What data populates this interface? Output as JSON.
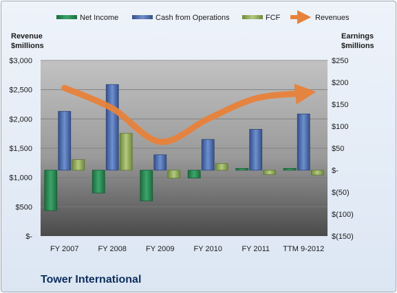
{
  "chart_data": {
    "type": "bar",
    "title": "Tower International",
    "categories": [
      "FY 2007",
      "FY 2008",
      "FY 2009",
      "FY 2010",
      "FY 2011",
      "TTM 9-2012"
    ],
    "left_axis": {
      "label_line1": "Revenue",
      "label_line2": "$millions",
      "ylim": [
        0,
        3000
      ],
      "ticks": [
        0,
        500,
        1000,
        1500,
        2000,
        2500,
        3000
      ],
      "tick_labels": [
        "$-",
        "$500",
        "$1,000",
        "$1,500",
        "$2,000",
        "$2,500",
        "$3,000"
      ]
    },
    "right_axis": {
      "label_line1": "Earnings",
      "label_line2": "$millions",
      "ylim": [
        -150,
        250
      ],
      "ticks": [
        -150,
        -100,
        -50,
        0,
        50,
        100,
        150,
        200,
        250
      ],
      "tick_labels": [
        "$(150)",
        "$(100)",
        "$(50)",
        "$-",
        "$50",
        "$100",
        "$150",
        "$200",
        "$250"
      ]
    },
    "series": [
      {
        "name": "Net Income",
        "axis": "right",
        "kind": "bar",
        "color": "#2e8b57",
        "values": [
          -92,
          -52,
          -70,
          -18,
          4,
          4
        ]
      },
      {
        "name": "Cash from Operations",
        "axis": "right",
        "kind": "bar",
        "color": "#4f6fae",
        "values": [
          134,
          195,
          35,
          70,
          93,
          128
        ]
      },
      {
        "name": "FCF",
        "axis": "right",
        "kind": "bar",
        "color": "#93ab5c",
        "values": [
          24,
          84,
          -18,
          15,
          -10,
          -11
        ]
      },
      {
        "name": "Revenues",
        "axis": "left",
        "kind": "line",
        "color": "#e8823a",
        "values": [
          2530,
          2180,
          1610,
          2000,
          2350,
          2440
        ]
      }
    ],
    "legend_position": "top",
    "grid": true
  }
}
